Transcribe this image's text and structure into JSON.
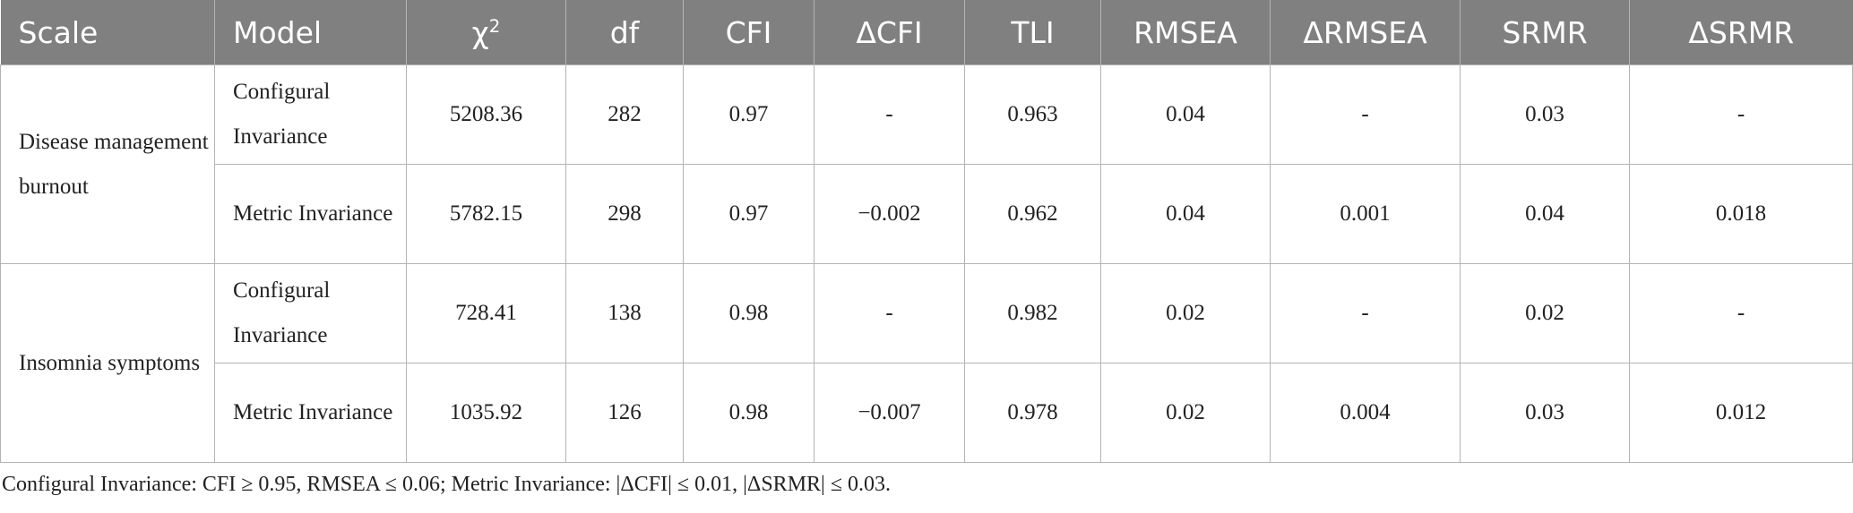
{
  "table": {
    "headers": {
      "scale": "Scale",
      "model": "Model",
      "chi2_symbol": "χ",
      "chi2_sup": "2",
      "df": "df",
      "cfi": "CFI",
      "delta_cfi": "ΔCFI",
      "tli": "TLI",
      "rmsea": "RMSEA",
      "delta_rmsea": "ΔRMSEA",
      "srmr": "SRMR",
      "delta_srmr": "ΔSRMR"
    },
    "groups": [
      {
        "scale": "Disease management burnout",
        "rows": [
          {
            "model": "Configural Invariance",
            "chi2": "5208.36",
            "df": "282",
            "cfi": "0.97",
            "delta_cfi": "-",
            "tli": "0.963",
            "rmsea": "0.04",
            "delta_rmsea": "-",
            "srmr": "0.03",
            "delta_srmr": "-"
          },
          {
            "model": "Metric Invariance",
            "chi2": "5782.15",
            "df": "298",
            "cfi": "0.97",
            "delta_cfi": "−0.002",
            "tli": "0.962",
            "rmsea": "0.04",
            "delta_rmsea": "0.001",
            "srmr": "0.04",
            "delta_srmr": "0.018"
          }
        ]
      },
      {
        "scale": "Insomnia symptoms",
        "rows": [
          {
            "model": "Configural Invariance",
            "chi2": "728.41",
            "df": "138",
            "cfi": "0.98",
            "delta_cfi": "-",
            "tli": "0.982",
            "rmsea": "0.02",
            "delta_rmsea": "-",
            "srmr": "0.02",
            "delta_srmr": "-"
          },
          {
            "model": "Metric Invariance",
            "chi2": "1035.92",
            "df": "126",
            "cfi": "0.98",
            "delta_cfi": "−0.007",
            "tli": "0.978",
            "rmsea": "0.02",
            "delta_rmsea": "0.004",
            "srmr": "0.03",
            "delta_srmr": "0.012"
          }
        ]
      }
    ]
  },
  "footnote": "Configural Invariance: CFI ≥ 0.95, RMSEA ≤ 0.06; Metric Invariance: |ΔCFI| ≤ 0.01, |ΔSRMR| ≤ 0.03."
}
